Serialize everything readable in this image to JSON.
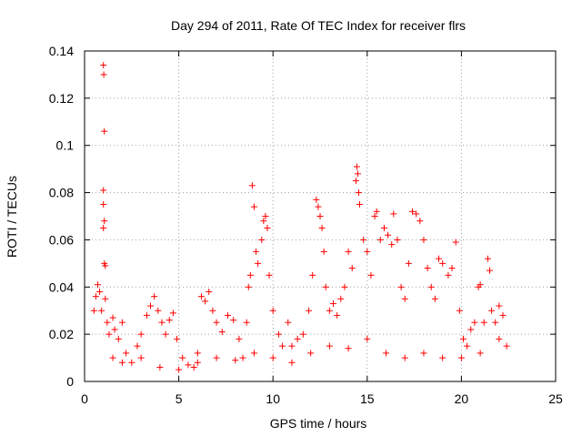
{
  "chart_data": {
    "type": "scatter",
    "title": "Day 294 of 2011, Rate Of TEC Index for receiver flrs",
    "xlabel": "GPS time / hours",
    "ylabel": "ROTI / TECUs",
    "xlim": [
      0,
      25
    ],
    "ylim": [
      0,
      0.14
    ],
    "xticks": [
      0,
      5,
      10,
      15,
      20,
      25
    ],
    "xtick_labels": [
      "0",
      "5",
      "10",
      "15",
      "20",
      "25"
    ],
    "yticks": [
      0,
      0.02,
      0.04,
      0.06,
      0.08,
      0.1,
      0.12,
      0.14
    ],
    "ytick_labels": [
      "0",
      "0.02",
      "0.04",
      "0.06",
      "0.08",
      "0.1",
      "0.12",
      "0.14"
    ],
    "grid": true,
    "marker": "+",
    "color": "#ff0000",
    "series": [
      {
        "name": "ROTI",
        "points": [
          [
            0.5,
            0.03
          ],
          [
            0.6,
            0.036
          ],
          [
            0.7,
            0.041
          ],
          [
            0.8,
            0.038
          ],
          [
            0.9,
            0.03
          ],
          [
            1.0,
            0.134
          ],
          [
            1.02,
            0.13
          ],
          [
            1.05,
            0.106
          ],
          [
            1.0,
            0.081
          ],
          [
            1.0,
            0.075
          ],
          [
            1.05,
            0.068
          ],
          [
            1.0,
            0.065
          ],
          [
            1.05,
            0.05
          ],
          [
            1.1,
            0.049
          ],
          [
            1.1,
            0.035
          ],
          [
            1.2,
            0.025
          ],
          [
            1.3,
            0.02
          ],
          [
            1.5,
            0.027
          ],
          [
            1.6,
            0.022
          ],
          [
            1.8,
            0.018
          ],
          [
            2.0,
            0.025
          ],
          [
            2.2,
            0.012
          ],
          [
            2.5,
            0.008
          ],
          [
            2.8,
            0.015
          ],
          [
            3.0,
            0.02
          ],
          [
            3.3,
            0.028
          ],
          [
            3.5,
            0.032
          ],
          [
            3.7,
            0.036
          ],
          [
            3.9,
            0.03
          ],
          [
            4.1,
            0.025
          ],
          [
            4.3,
            0.02
          ],
          [
            4.5,
            0.026
          ],
          [
            4.7,
            0.029
          ],
          [
            4.9,
            0.018
          ],
          [
            5.2,
            0.01
          ],
          [
            5.5,
            0.007
          ],
          [
            5.8,
            0.006
          ],
          [
            6.0,
            0.012
          ],
          [
            6.2,
            0.036
          ],
          [
            6.4,
            0.034
          ],
          [
            6.6,
            0.038
          ],
          [
            6.8,
            0.03
          ],
          [
            7.0,
            0.025
          ],
          [
            7.3,
            0.021
          ],
          [
            7.6,
            0.028
          ],
          [
            7.9,
            0.026
          ],
          [
            8.2,
            0.018
          ],
          [
            8.4,
            0.01
          ],
          [
            8.6,
            0.025
          ],
          [
            8.7,
            0.04
          ],
          [
            8.8,
            0.045
          ],
          [
            8.9,
            0.083
          ],
          [
            9.0,
            0.074
          ],
          [
            9.1,
            0.055
          ],
          [
            9.2,
            0.05
          ],
          [
            9.4,
            0.06
          ],
          [
            9.5,
            0.068
          ],
          [
            9.6,
            0.07
          ],
          [
            9.7,
            0.065
          ],
          [
            9.8,
            0.045
          ],
          [
            10.0,
            0.03
          ],
          [
            10.3,
            0.02
          ],
          [
            10.5,
            0.015
          ],
          [
            10.8,
            0.025
          ],
          [
            11.0,
            0.015
          ],
          [
            11.3,
            0.018
          ],
          [
            11.6,
            0.02
          ],
          [
            11.9,
            0.03
          ],
          [
            12.1,
            0.045
          ],
          [
            12.3,
            0.077
          ],
          [
            12.4,
            0.074
          ],
          [
            12.5,
            0.07
          ],
          [
            12.6,
            0.065
          ],
          [
            12.7,
            0.055
          ],
          [
            12.8,
            0.04
          ],
          [
            13.0,
            0.03
          ],
          [
            13.2,
            0.033
          ],
          [
            13.4,
            0.028
          ],
          [
            13.6,
            0.035
          ],
          [
            13.8,
            0.04
          ],
          [
            14.0,
            0.055
          ],
          [
            14.2,
            0.048
          ],
          [
            14.4,
            0.085
          ],
          [
            14.45,
            0.091
          ],
          [
            14.5,
            0.088
          ],
          [
            14.55,
            0.08
          ],
          [
            14.6,
            0.075
          ],
          [
            14.8,
            0.06
          ],
          [
            15.0,
            0.055
          ],
          [
            15.2,
            0.045
          ],
          [
            15.4,
            0.07
          ],
          [
            15.5,
            0.072
          ],
          [
            15.7,
            0.06
          ],
          [
            15.9,
            0.065
          ],
          [
            16.1,
            0.062
          ],
          [
            16.3,
            0.058
          ],
          [
            16.4,
            0.071
          ],
          [
            16.6,
            0.06
          ],
          [
            16.8,
            0.04
          ],
          [
            17.0,
            0.035
          ],
          [
            17.2,
            0.05
          ],
          [
            17.4,
            0.072
          ],
          [
            17.6,
            0.071
          ],
          [
            17.8,
            0.068
          ],
          [
            18.0,
            0.06
          ],
          [
            18.2,
            0.048
          ],
          [
            18.4,
            0.04
          ],
          [
            18.6,
            0.035
          ],
          [
            18.8,
            0.052
          ],
          [
            19.0,
            0.05
          ],
          [
            19.3,
            0.045
          ],
          [
            19.5,
            0.048
          ],
          [
            19.7,
            0.059
          ],
          [
            19.9,
            0.03
          ],
          [
            20.1,
            0.018
          ],
          [
            20.3,
            0.015
          ],
          [
            20.5,
            0.022
          ],
          [
            20.7,
            0.025
          ],
          [
            20.9,
            0.04
          ],
          [
            21.0,
            0.041
          ],
          [
            21.2,
            0.025
          ],
          [
            21.4,
            0.052
          ],
          [
            21.5,
            0.047
          ],
          [
            21.6,
            0.03
          ],
          [
            21.8,
            0.025
          ],
          [
            22.0,
            0.032
          ],
          [
            22.2,
            0.028
          ],
          [
            22.4,
            0.015
          ],
          [
            1.5,
            0.01
          ],
          [
            2.0,
            0.008
          ],
          [
            3.0,
            0.01
          ],
          [
            4.0,
            0.006
          ],
          [
            5.0,
            0.005
          ],
          [
            6.0,
            0.008
          ],
          [
            7.0,
            0.01
          ],
          [
            8.0,
            0.009
          ],
          [
            9.0,
            0.012
          ],
          [
            10.0,
            0.01
          ],
          [
            11.0,
            0.008
          ],
          [
            12.0,
            0.012
          ],
          [
            13.0,
            0.015
          ],
          [
            14.0,
            0.014
          ],
          [
            15.0,
            0.018
          ],
          [
            16.0,
            0.012
          ],
          [
            17.0,
            0.01
          ],
          [
            18.0,
            0.012
          ],
          [
            19.0,
            0.01
          ],
          [
            20.0,
            0.01
          ],
          [
            21.0,
            0.012
          ],
          [
            22.0,
            0.018
          ]
        ]
      }
    ]
  }
}
